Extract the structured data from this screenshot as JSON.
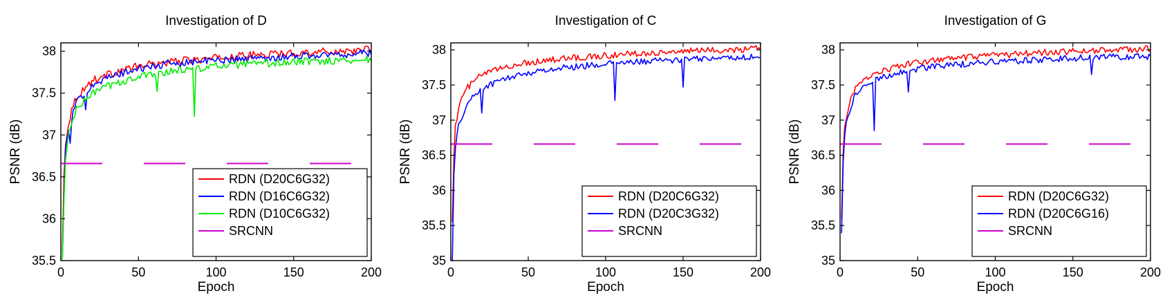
{
  "chart_data": [
    {
      "type": "line",
      "title": "Investigation of D",
      "xlabel": "Epoch",
      "ylabel": "PSNR (dB)",
      "xlim": [
        0,
        200
      ],
      "ylim": [
        35.5,
        38.1
      ],
      "xticks": [
        "0",
        "50",
        "100",
        "150",
        "200"
      ],
      "yticks": [
        "35.5",
        "36",
        "36.5",
        "37",
        "37.5",
        "38"
      ],
      "legend_position": "bottom-right",
      "series": [
        {
          "name": "RDN (D20C6G32)",
          "color": "#ff0000",
          "style": "solid",
          "x": [
            1,
            2,
            3,
            5,
            7,
            10,
            15,
            20,
            30,
            40,
            50,
            60,
            70,
            80,
            90,
            100,
            120,
            140,
            160,
            180,
            200
          ],
          "y": [
            35.6,
            36.5,
            36.9,
            37.15,
            37.3,
            37.45,
            37.55,
            37.65,
            37.72,
            37.78,
            37.82,
            37.85,
            37.87,
            37.89,
            37.9,
            37.92,
            37.95,
            37.97,
            37.99,
            38.0,
            38.02
          ],
          "dips": []
        },
        {
          "name": "RDN (D16C6G32)",
          "color": "#0000ff",
          "style": "solid",
          "x": [
            1,
            2,
            3,
            5,
            7,
            10,
            15,
            20,
            30,
            40,
            50,
            60,
            70,
            80,
            90,
            100,
            120,
            140,
            160,
            180,
            200
          ],
          "y": [
            35.5,
            36.3,
            36.8,
            37.05,
            37.2,
            37.38,
            37.5,
            37.6,
            37.68,
            37.74,
            37.79,
            37.82,
            37.85,
            37.87,
            37.88,
            37.89,
            37.91,
            37.93,
            37.95,
            37.96,
            37.98
          ],
          "dips": [
            [
              6,
              36.9
            ],
            [
              16,
              37.3
            ]
          ]
        },
        {
          "name": "RDN (D10C6G32)",
          "color": "#00ee00",
          "style": "solid",
          "x": [
            1,
            2,
            3,
            5,
            7,
            10,
            15,
            20,
            30,
            40,
            50,
            60,
            70,
            80,
            90,
            100,
            120,
            140,
            160,
            180,
            200
          ],
          "y": [
            35.5,
            36.2,
            36.7,
            37.0,
            37.15,
            37.3,
            37.4,
            37.5,
            37.58,
            37.64,
            37.69,
            37.73,
            37.76,
            37.78,
            37.8,
            37.82,
            37.84,
            37.86,
            37.88,
            37.89,
            37.9
          ],
          "dips": [
            [
              86,
              37.22
            ],
            [
              62,
              37.52
            ]
          ]
        },
        {
          "name": "SRCNN",
          "color": "#cc00cc",
          "style": "dashed",
          "x": [
            0,
            200
          ],
          "y": [
            36.66,
            36.66
          ],
          "dips": []
        }
      ]
    },
    {
      "type": "line",
      "title": "Investigation of C",
      "xlabel": "Epoch",
      "ylabel": "PSNR (dB)",
      "xlim": [
        0,
        200
      ],
      "ylim": [
        35,
        38.1
      ],
      "xticks": [
        "0",
        "50",
        "100",
        "150",
        "200"
      ],
      "yticks": [
        "35",
        "35.5",
        "36",
        "36.5",
        "37",
        "37.5",
        "38"
      ],
      "legend_position": "bottom-right",
      "series": [
        {
          "name": "RDN (D20C6G32)",
          "color": "#ff0000",
          "style": "solid",
          "x": [
            1,
            2,
            3,
            5,
            7,
            10,
            15,
            20,
            30,
            40,
            50,
            60,
            70,
            80,
            90,
            100,
            120,
            140,
            160,
            180,
            200
          ],
          "y": [
            35.6,
            36.5,
            36.9,
            37.15,
            37.3,
            37.45,
            37.55,
            37.65,
            37.72,
            37.78,
            37.82,
            37.85,
            37.87,
            37.89,
            37.9,
            37.92,
            37.95,
            37.97,
            37.99,
            38.0,
            38.02
          ],
          "dips": []
        },
        {
          "name": "RDN (D20C3G32)",
          "color": "#0000ff",
          "style": "solid",
          "x": [
            1,
            2,
            3,
            5,
            7,
            10,
            15,
            20,
            30,
            40,
            50,
            60,
            70,
            80,
            90,
            100,
            120,
            140,
            160,
            180,
            200
          ],
          "y": [
            35.05,
            36.2,
            36.6,
            36.9,
            37.05,
            37.2,
            37.35,
            37.45,
            37.55,
            37.62,
            37.67,
            37.71,
            37.74,
            37.76,
            37.78,
            37.8,
            37.83,
            37.85,
            37.87,
            37.89,
            37.9
          ],
          "dips": [
            [
              106,
              37.28
            ],
            [
              150,
              37.47
            ],
            [
              20,
              37.1
            ]
          ]
        },
        {
          "name": "SRCNN",
          "color": "#cc00cc",
          "style": "dashed",
          "x": [
            0,
            200
          ],
          "y": [
            36.66,
            36.66
          ],
          "dips": []
        }
      ]
    },
    {
      "type": "line",
      "title": "Investigation of G",
      "xlabel": "Epoch",
      "ylabel": "PSNR (dB)",
      "xlim": [
        0,
        200
      ],
      "ylim": [
        35,
        38.1
      ],
      "xticks": [
        "0",
        "50",
        "100",
        "150",
        "200"
      ],
      "yticks": [
        "35",
        "35.5",
        "36",
        "36.5",
        "37",
        "37.5",
        "38"
      ],
      "legend_position": "bottom-right",
      "series": [
        {
          "name": "RDN (D20C6G32)",
          "color": "#ff0000",
          "style": "solid",
          "x": [
            1,
            2,
            3,
            5,
            7,
            10,
            15,
            20,
            30,
            40,
            50,
            60,
            70,
            80,
            90,
            100,
            120,
            140,
            160,
            180,
            200
          ],
          "y": [
            35.6,
            36.5,
            36.9,
            37.15,
            37.3,
            37.45,
            37.55,
            37.65,
            37.72,
            37.78,
            37.82,
            37.85,
            37.87,
            37.89,
            37.9,
            37.92,
            37.95,
            37.97,
            37.99,
            38.0,
            38.02
          ],
          "dips": []
        },
        {
          "name": "RDN (D20C6G16)",
          "color": "#0000ff",
          "style": "solid",
          "x": [
            1,
            2,
            3,
            5,
            7,
            10,
            15,
            20,
            30,
            40,
            50,
            60,
            70,
            80,
            90,
            100,
            120,
            140,
            160,
            180,
            200
          ],
          "y": [
            35.4,
            36.4,
            36.8,
            37.05,
            37.2,
            37.35,
            37.47,
            37.55,
            37.63,
            37.69,
            37.73,
            37.76,
            37.78,
            37.8,
            37.82,
            37.83,
            37.85,
            37.87,
            37.89,
            37.9,
            37.91
          ],
          "dips": [
            [
              22,
              36.85
            ],
            [
              162,
              37.65
            ],
            [
              44,
              37.4
            ]
          ]
        },
        {
          "name": "SRCNN",
          "color": "#cc00cc",
          "style": "dashed",
          "x": [
            0,
            200
          ],
          "y": [
            36.66,
            36.66
          ],
          "dips": []
        }
      ]
    }
  ]
}
